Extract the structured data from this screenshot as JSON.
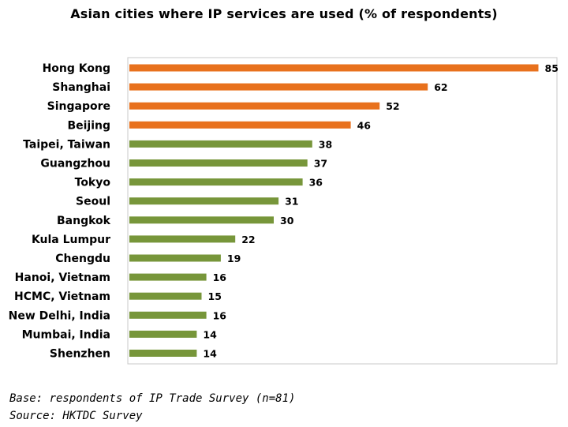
{
  "chart_data": {
    "type": "bar",
    "orientation": "horizontal",
    "title": "Asian cities where IP services are used (% of respondents)",
    "categories": [
      "Hong Kong",
      "Shanghai",
      "Singapore",
      "Beijing",
      "Taipei, Taiwan",
      "Guangzhou",
      "Tokyo",
      "Seoul",
      "Bangkok",
      "Kula Lumpur",
      "Chengdu",
      "Hanoi, Vietnam",
      "HCMC, Vietnam",
      "New Delhi, India",
      "Mumbai, India",
      "Shenzhen"
    ],
    "values": [
      85,
      62,
      52,
      46,
      38,
      37,
      36,
      31,
      30,
      22,
      19,
      16,
      15,
      16,
      14,
      14
    ],
    "value_labels": [
      "85",
      "62",
      "52",
      "46",
      "38",
      "37",
      "36",
      "31",
      "30",
      "22",
      "19",
      "16",
      "15",
      "16",
      "14",
      "14"
    ],
    "highlight_count": 4,
    "colors": {
      "highlight": "#E8711D",
      "default": "#77963A",
      "frame": "#C8C8C8"
    },
    "xlim": [
      0,
      85
    ],
    "grid": false
  },
  "notes": {
    "base": "Base: respondents of IP Trade Survey (n=81)",
    "source": "Source: HKTDC Survey"
  }
}
